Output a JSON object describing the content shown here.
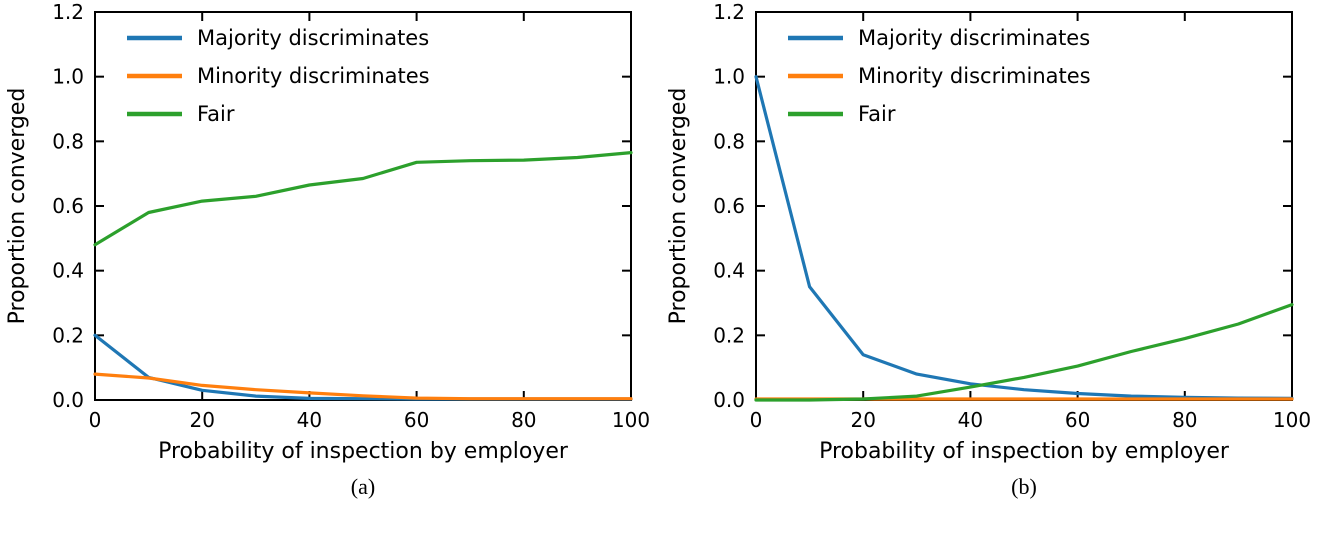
{
  "figure": {
    "type": "two-panel-line-figure"
  },
  "chart_data": [
    {
      "type": "line",
      "caption": "(a)",
      "xlabel": "Probability of inspection by employer",
      "ylabel": "Proportion converged",
      "xlim": [
        0,
        100
      ],
      "ylim": [
        0,
        1.2
      ],
      "xticks": [
        0,
        20,
        40,
        60,
        80,
        100
      ],
      "xticklabels": [
        "0",
        "20",
        "40",
        "60",
        "80",
        "100"
      ],
      "yticks": [
        0.0,
        0.2,
        0.4,
        0.6,
        0.8,
        1.0,
        1.2
      ],
      "yticklabels": [
        "0.0",
        "0.2",
        "0.4",
        "0.6",
        "0.8",
        "1.0",
        "1.2"
      ],
      "grid": false,
      "legend_position": "upper-left",
      "x": [
        0,
        10,
        20,
        30,
        40,
        50,
        60,
        70,
        80,
        90,
        100
      ],
      "series": [
        {
          "name": "Majority discriminates",
          "color": "#1f77b4",
          "values": [
            0.2,
            0.07,
            0.03,
            0.012,
            0.005,
            0.004,
            0.003,
            0.003,
            0.003,
            0.003,
            0.003
          ]
        },
        {
          "name": "Minority discriminates",
          "color": "#ff7f0e",
          "values": [
            0.08,
            0.068,
            0.045,
            0.032,
            0.022,
            0.013,
            0.006,
            0.004,
            0.004,
            0.004,
            0.004
          ]
        },
        {
          "name": "Fair",
          "color": "#2ca02c",
          "values": [
            0.48,
            0.58,
            0.615,
            0.63,
            0.665,
            0.685,
            0.735,
            0.74,
            0.742,
            0.75,
            0.765
          ]
        }
      ]
    },
    {
      "type": "line",
      "caption": "(b)",
      "xlabel": "Probability of inspection by employer",
      "ylabel": "Proportion converged",
      "xlim": [
        0,
        100
      ],
      "ylim": [
        0,
        1.2
      ],
      "xticks": [
        0,
        20,
        40,
        60,
        80,
        100
      ],
      "xticklabels": [
        "0",
        "20",
        "40",
        "60",
        "80",
        "100"
      ],
      "yticks": [
        0.0,
        0.2,
        0.4,
        0.6,
        0.8,
        1.0,
        1.2
      ],
      "yticklabels": [
        "0.0",
        "0.2",
        "0.4",
        "0.6",
        "0.8",
        "1.0",
        "1.2"
      ],
      "grid": false,
      "legend_position": "upper-left",
      "x": [
        0,
        10,
        20,
        30,
        40,
        50,
        60,
        70,
        80,
        90,
        100
      ],
      "series": [
        {
          "name": "Majority discriminates",
          "color": "#1f77b4",
          "values": [
            1.0,
            0.35,
            0.14,
            0.08,
            0.05,
            0.032,
            0.02,
            0.012,
            0.008,
            0.006,
            0.005
          ]
        },
        {
          "name": "Minority discriminates",
          "color": "#ff7f0e",
          "values": [
            0.003,
            0.003,
            0.003,
            0.003,
            0.003,
            0.003,
            0.003,
            0.003,
            0.003,
            0.003,
            0.003
          ]
        },
        {
          "name": "Fair",
          "color": "#2ca02c",
          "values": [
            0.0,
            0.0,
            0.003,
            0.012,
            0.04,
            0.07,
            0.105,
            0.15,
            0.19,
            0.235,
            0.295
          ]
        }
      ]
    }
  ]
}
